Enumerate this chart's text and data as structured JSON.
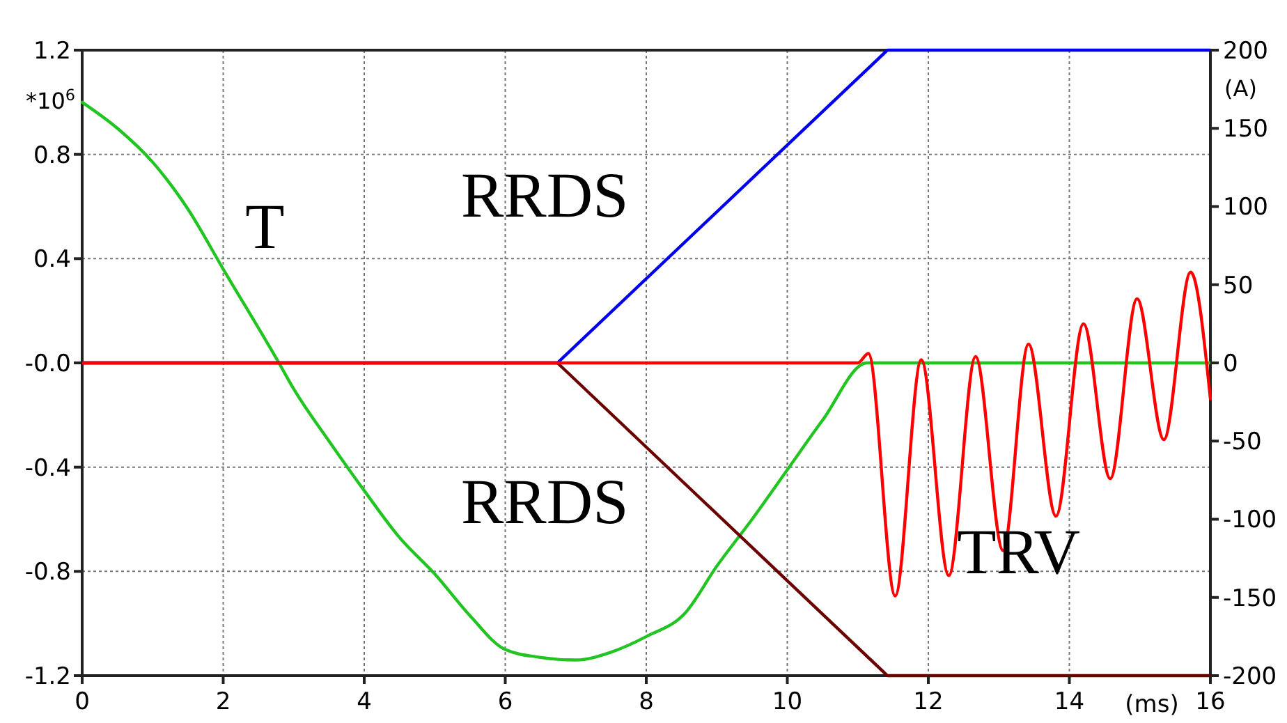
{
  "chart_data": {
    "type": "line",
    "xlabel": "(ms)",
    "ylabel": "*10$^{6}$",
    "y2label": "(A)",
    "xlim": [
      0,
      16
    ],
    "xticks": [
      0,
      2,
      4,
      6,
      8,
      10,
      12,
      14,
      16
    ],
    "ylim": [
      -1.2,
      1.2
    ],
    "yticks": [
      1.2,
      0.8,
      0.4,
      {
        "value": 0,
        "label": "-0.0"
      },
      -0.4,
      -0.8,
      -1.2
    ],
    "y2lim": [
      -200,
      200
    ],
    "y2ticks": [
      200,
      150,
      100,
      50,
      0,
      -50,
      -100,
      -150,
      -200
    ],
    "grid": true,
    "line_style": "solid",
    "marker": "none",
    "annotations": [
      "T",
      "RRDS",
      "RRDS",
      "TRV"
    ],
    "series": [
      {
        "color": "#22c422",
        "x": [
          0,
          0.5,
          1,
          1.5,
          2,
          2.79,
          3,
          3.5,
          4,
          4.5,
          5,
          5.5,
          6,
          6.5,
          7,
          7.5,
          8,
          8.55,
          9,
          9.5,
          10,
          10.5,
          11.13,
          16
        ],
        "values": [
          1.0,
          0.9,
          0.77,
          0.59,
          0.36,
          0,
          -0.1,
          -0.3,
          -0.49,
          -0.67,
          -0.81,
          -0.97,
          -1.1,
          -1.13,
          -1.14,
          -1.11,
          -1.05,
          -0.96,
          -0.78,
          -0.6,
          -0.41,
          -0.22,
          0,
          0
        ]
      },
      {
        "color": "#0000ee",
        "axis": "y2",
        "x": [
          0,
          6.74,
          11.42,
          16
        ],
        "values": [
          0,
          0,
          200,
          200
        ]
      },
      {
        "color": "#6b0000",
        "axis": "y2",
        "x": [
          0,
          6.74,
          11.42,
          16
        ],
        "values": [
          0,
          0,
          -200,
          -200
        ]
      },
      {
        "color": "#ff0000",
        "axis": "y2",
        "x": [
          0,
          11.0,
          11.15,
          11.53,
          11.9,
          12.29,
          12.67,
          13.06,
          13.42,
          13.81,
          14.2,
          14.58,
          14.96,
          15.34,
          15.72,
          16
        ],
        "values": [
          0,
          0,
          6,
          -149,
          2,
          -136,
          4,
          -120,
          12,
          -98,
          25,
          -74,
          41,
          -49,
          58,
          -23
        ]
      }
    ]
  }
}
